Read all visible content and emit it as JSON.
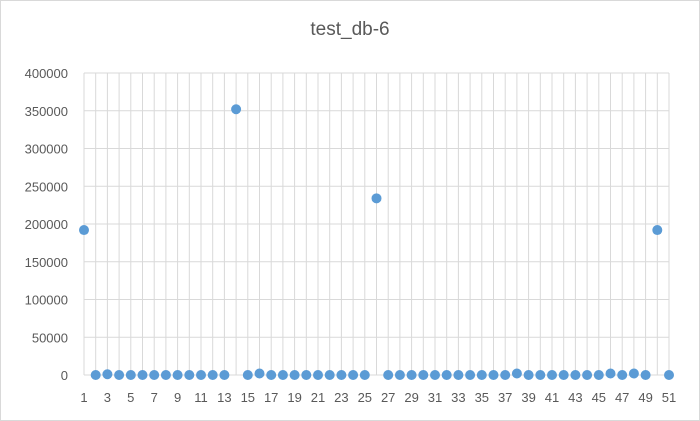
{
  "chart_data": {
    "type": "scatter",
    "title": "test_db-6",
    "xlabel": "",
    "ylabel": "",
    "xlim": [
      1,
      51
    ],
    "ylim": [
      0,
      400000
    ],
    "y_ticks": [
      0,
      50000,
      100000,
      150000,
      200000,
      250000,
      300000,
      350000,
      400000
    ],
    "y_tick_labels": [
      "0",
      "50000",
      "100000",
      "150000",
      "200000",
      "250000",
      "300000",
      "350000",
      "400000"
    ],
    "x_tick_labels": [
      "1",
      "3",
      "5",
      "7",
      "9",
      "11",
      "13",
      "15",
      "17",
      "19",
      "21",
      "23",
      "25",
      "27",
      "29",
      "31",
      "33",
      "35",
      "37",
      "39",
      "41",
      "43",
      "45",
      "47",
      "49",
      "51"
    ],
    "grid": "vertical-and-horizontal",
    "marker_color": "#5b9bd5",
    "series": [
      {
        "x": [
          1,
          2,
          3,
          4,
          5,
          6,
          7,
          8,
          9,
          10,
          11,
          12,
          13,
          14,
          15,
          16,
          17,
          18,
          19,
          20,
          21,
          22,
          23,
          24,
          25,
          26,
          27,
          28,
          29,
          30,
          31,
          32,
          33,
          34,
          35,
          36,
          37,
          38,
          39,
          40,
          41,
          42,
          43,
          44,
          45,
          46,
          47,
          48,
          49,
          50,
          51
        ],
        "values": [
          192000,
          0,
          1000,
          0,
          0,
          0,
          0,
          0,
          0,
          0,
          0,
          0,
          0,
          352000,
          0,
          2000,
          0,
          0,
          0,
          0,
          0,
          0,
          0,
          0,
          0,
          234000,
          0,
          0,
          0,
          0,
          0,
          0,
          0,
          0,
          0,
          0,
          0,
          2000,
          0,
          0,
          0,
          0,
          0,
          0,
          0,
          2000,
          0,
          2000,
          0,
          192000,
          0
        ]
      }
    ]
  }
}
